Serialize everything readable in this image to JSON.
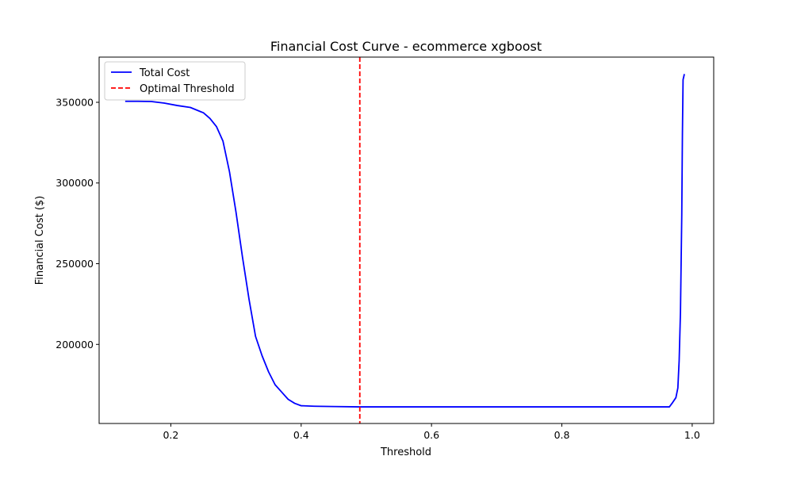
{
  "chart_data": {
    "type": "line",
    "title": "Financial Cost Curve - ecommerce xgboost",
    "xlabel": "Threshold",
    "ylabel": "Financial Cost ($)",
    "xlim": [
      0.09,
      1.033
    ],
    "ylim": [
      151000,
      378000
    ],
    "xticks": [
      0.2,
      0.4,
      0.6,
      0.8,
      1.0
    ],
    "xtick_labels": [
      "0.2",
      "0.4",
      "0.6",
      "0.8",
      "1.0"
    ],
    "yticks": [
      200000,
      250000,
      300000,
      350000
    ],
    "ytick_labels": [
      "200000",
      "250000",
      "300000",
      "350000"
    ],
    "grid": false,
    "legend_position": "upper left",
    "series": [
      {
        "name": "Total Cost",
        "color": "#0000ff",
        "style": "solid",
        "x": [
          0.13,
          0.15,
          0.17,
          0.19,
          0.21,
          0.23,
          0.25,
          0.26,
          0.27,
          0.28,
          0.29,
          0.3,
          0.31,
          0.32,
          0.33,
          0.34,
          0.35,
          0.36,
          0.37,
          0.38,
          0.39,
          0.4,
          0.42,
          0.45,
          0.49,
          0.55,
          0.65,
          0.75,
          0.85,
          0.94,
          0.965,
          0.97,
          0.975,
          0.978,
          0.98,
          0.982,
          0.984,
          0.985,
          0.986,
          0.988
        ],
        "y": [
          350600,
          350600,
          350500,
          349500,
          348000,
          346800,
          343500,
          340000,
          335000,
          326000,
          307000,
          282000,
          254000,
          228000,
          205000,
          193000,
          183000,
          175000,
          170500,
          166000,
          163500,
          162000,
          161700,
          161500,
          161300,
          161300,
          161300,
          161300,
          161300,
          161300,
          161300,
          164000,
          167000,
          173000,
          190000,
          220000,
          280000,
          330000,
          364000,
          367500
        ]
      },
      {
        "name": "Optimal Threshold",
        "color": "#ff0000",
        "style": "dashed",
        "x_value": 0.49
      }
    ]
  }
}
